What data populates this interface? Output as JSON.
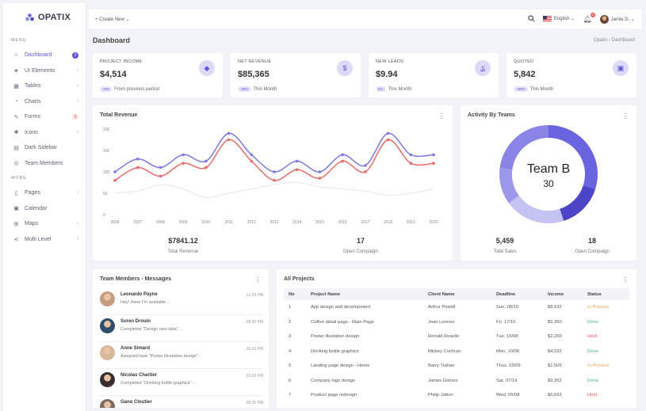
{
  "brand": {
    "name": "OPATIX"
  },
  "sidebar": {
    "menu_heading": "MENU",
    "more_heading": "MORE",
    "items": [
      {
        "label": "Dashboard",
        "icon": "home-icon",
        "badge": "3",
        "active": true
      },
      {
        "label": "UI Elements",
        "icon": "layers-icon",
        "chevron": true
      },
      {
        "label": "Tables",
        "icon": "table-icon",
        "chevron": true
      },
      {
        "label": "Charts",
        "icon": "chart-icon",
        "chevron": true
      },
      {
        "label": "Forms",
        "icon": "form-icon",
        "badge_red": "9"
      },
      {
        "label": "Icons",
        "icon": "grid-icon",
        "chevron": true
      },
      {
        "label": "Dark Sidebar",
        "icon": "sidebar-icon"
      },
      {
        "label": "Team Members",
        "icon": "team-icon"
      }
    ],
    "more_items": [
      {
        "label": "Pages",
        "icon": "page-icon",
        "chevron": true
      },
      {
        "label": "Calendar",
        "icon": "calendar-icon"
      },
      {
        "label": "Maps",
        "icon": "map-icon",
        "chevron": true
      },
      {
        "label": "Multi Level",
        "icon": "share-icon",
        "chevron": true
      }
    ]
  },
  "topbar": {
    "create_new": "+ Create New ⌄",
    "language": "English ⌄",
    "notifications": "6",
    "user": "Jamie D. ⌄"
  },
  "page": {
    "title": "Dashboard",
    "breadcrumb": "Opatix  ›  Dashboard"
  },
  "stats": [
    {
      "label": "PROJECT INCOME",
      "value": "$4,514",
      "pill": "+8%",
      "sub": "From previous period",
      "icon": "box-icon"
    },
    {
      "label": "NET REVENUE",
      "value": "$85,365",
      "pill": "-28%",
      "sub": "This Month",
      "icon": "dollar-icon"
    },
    {
      "label": "NEW LEADS",
      "value": "$9.94",
      "pill": "5%",
      "sub": "This Month",
      "icon": "currency-icon"
    },
    {
      "label": "QUOTED",
      "value": "5,842",
      "pill": "+89%",
      "sub": "This Month",
      "icon": "bag-icon"
    }
  ],
  "revenue": {
    "title": "Total Revenue",
    "summary": [
      {
        "value": "$7841.12",
        "label": "Total Revenue"
      },
      {
        "value": "17",
        "label": "Open Compaign"
      }
    ]
  },
  "teams": {
    "title": "Activity By Teams",
    "center_name": "Team B",
    "center_value": "30",
    "summary": [
      {
        "value": "5,459",
        "label": "Total Sales"
      },
      {
        "value": "18",
        "label": "Open Compaign"
      }
    ]
  },
  "chart_data": {
    "type": "line",
    "x": [
      "2006",
      "2007",
      "2008",
      "2009",
      "2010",
      "2011",
      "2012",
      "2013",
      "2014",
      "2015",
      "2016",
      "2017",
      "2018",
      "2019",
      "2020"
    ],
    "yticks": [
      0,
      50,
      100,
      150,
      200
    ],
    "ylim": [
      0,
      200
    ],
    "series": [
      {
        "color": "#7b77e3",
        "values": [
          100,
          130,
          110,
          140,
          125,
          190,
          140,
          100,
          125,
          100,
          140,
          115,
          190,
          140,
          140
        ]
      },
      {
        "color": "#e86a6a",
        "values": [
          80,
          110,
          90,
          120,
          110,
          175,
          125,
          80,
          105,
          85,
          125,
          100,
          175,
          120,
          120
        ]
      },
      {
        "color": "#e6e6e6",
        "values": [
          50,
          55,
          70,
          60,
          40,
          50,
          60,
          70,
          75,
          65,
          60,
          55,
          45,
          50,
          60
        ]
      }
    ]
  },
  "donut_data": {
    "type": "pie",
    "slices": [
      {
        "value": 30,
        "color": "#6a64e0"
      },
      {
        "value": 15,
        "color": "#4c45c8"
      },
      {
        "value": 20,
        "color": "#c4c1f3"
      },
      {
        "value": 12,
        "color": "#9b97ea"
      },
      {
        "value": 23,
        "color": "#8a84e6"
      }
    ]
  },
  "messages": {
    "title": "Team Members - Messages",
    "items": [
      {
        "name": "Leonardo Payne",
        "text": "Hey! there I'm available...",
        "time": "12:39 PM"
      },
      {
        "name": "Soren Drouin",
        "text": "Completed \"Design new idea\"...",
        "time": "08:30 PM"
      },
      {
        "name": "Anne Simard",
        "text": "Assigned task \"Poster illustation design\"...",
        "time": "10:30 PM"
      },
      {
        "name": "Nicolas Chartier",
        "text": "Completed \"Drinking bottle graphics\"...",
        "time": "02:00 PM"
      },
      {
        "name": "Gano Cloutier",
        "text": "",
        "time": "08:30 PM"
      }
    ]
  },
  "projects": {
    "title": "All Projects",
    "columns": [
      "No",
      "Project Name",
      "Client Name",
      "Deadline",
      "Income",
      "Status"
    ],
    "rows": [
      [
        "1",
        "App design and development",
        "Arthur Powell",
        "Sun, 08/10",
        "$8,532",
        "In Process"
      ],
      [
        "2",
        "Coffee detail page - Main Page",
        "Joan Lennox",
        "Fri, 17/10",
        "$5,350",
        "Done"
      ],
      [
        "3",
        "Poster illustation design",
        "Ronald Roselle",
        "Tue, 15/08",
        "$2,250",
        "Hold"
      ],
      [
        "4",
        "Drinking bottle graphics",
        "Mickey Cochran",
        "Mon, 10/08",
        "$4,532",
        "Done"
      ],
      [
        "5",
        "Landing page design - Home",
        "Barry Trahan",
        "Thus, 03/09",
        "$1,505",
        "In Process"
      ],
      [
        "6",
        "Company logo design",
        "James Grimes",
        "Sat, 07/19",
        "$9,352",
        "Done"
      ],
      [
        "7",
        "Product page redesign",
        "Philip Jatton",
        "Wed, 05/08",
        "$6,693",
        "Hold"
      ]
    ]
  }
}
